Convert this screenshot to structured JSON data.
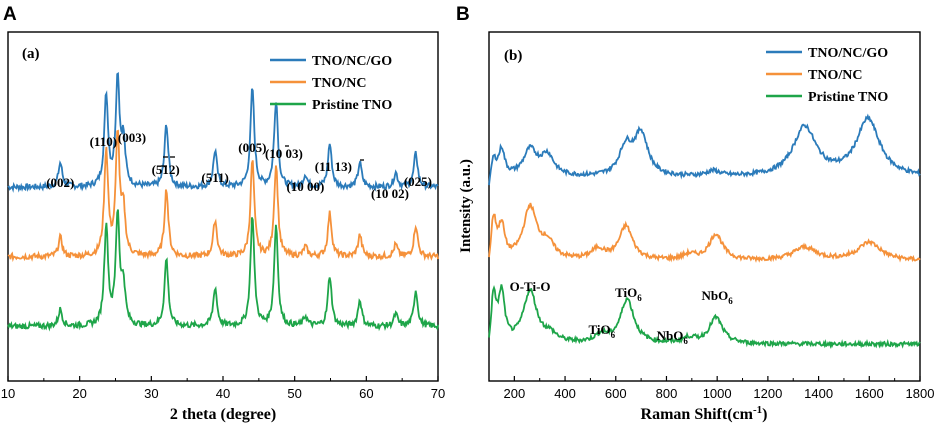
{
  "colors": {
    "blue": "#2b7bba",
    "orange": "#f5913a",
    "green": "#1ea549",
    "axis": "#000000"
  },
  "chart_data": [
    {
      "panel_letter": "A",
      "panel_label": "(a)",
      "type": "line",
      "title": "",
      "xlabel": "2 theta (degree)",
      "ylabel": "",
      "xlim": [
        10,
        70
      ],
      "xticks": [
        "10",
        "20",
        "30",
        "40",
        "50",
        "60",
        "70"
      ],
      "legend_position": "top-right",
      "series": [
        {
          "name": "TNO/NC/GO",
          "color_key": "blue",
          "baseline": 0.72,
          "peaks": [
            [
              17.3,
              0.1
            ],
            [
              23.7,
              0.38
            ],
            [
              25.3,
              0.45
            ],
            [
              26.1,
              0.18
            ],
            [
              32.1,
              0.26
            ],
            [
              38.9,
              0.15
            ],
            [
              44.1,
              0.41
            ],
            [
              47.4,
              0.36
            ],
            [
              51.5,
              0.05
            ],
            [
              54.9,
              0.18
            ],
            [
              59.1,
              0.1
            ],
            [
              64.1,
              0.06
            ],
            [
              66.9,
              0.14
            ]
          ]
        },
        {
          "name": "TNO/NC",
          "color_key": "orange",
          "baseline": 0.43,
          "peaks": [
            [
              17.3,
              0.08
            ],
            [
              23.7,
              0.44
            ],
            [
              25.3,
              0.5
            ],
            [
              26.1,
              0.18
            ],
            [
              32.1,
              0.28
            ],
            [
              38.9,
              0.15
            ],
            [
              44.1,
              0.4
            ],
            [
              47.4,
              0.38
            ],
            [
              51.5,
              0.04
            ],
            [
              54.9,
              0.18
            ],
            [
              59.1,
              0.09
            ],
            [
              64.1,
              0.05
            ],
            [
              66.9,
              0.13
            ]
          ]
        },
        {
          "name": "Pristine TNO",
          "color_key": "green",
          "baseline": 0.14,
          "peaks": [
            [
              17.3,
              0.07
            ],
            [
              23.7,
              0.42
            ],
            [
              25.3,
              0.46
            ],
            [
              26.1,
              0.16
            ],
            [
              32.1,
              0.28
            ],
            [
              38.9,
              0.16
            ],
            [
              44.1,
              0.46
            ],
            [
              47.4,
              0.42
            ],
            [
              51.5,
              0.04
            ],
            [
              54.9,
              0.21
            ],
            [
              59.1,
              0.11
            ],
            [
              64.1,
              0.05
            ],
            [
              66.9,
              0.15
            ]
          ]
        }
      ],
      "annotations": [
        {
          "text": "(002)",
          "x": 17.3
        },
        {
          "text": "(110)",
          "x": 23.3
        },
        {
          "text": "(003)",
          "x": 27.3
        },
        {
          "text": "(512)",
          "x": 32.0
        },
        {
          "text": "(511)",
          "x": 38.9
        },
        {
          "text": "(005)",
          "x": 44.1
        },
        {
          "text": "(10 03)",
          "x": 48.5
        },
        {
          "text": "(10 00)",
          "x": 51.5
        },
        {
          "text": "(11 13)",
          "x": 55.4
        },
        {
          "text": "(10 02)",
          "x": 63.3
        },
        {
          "text": "(025)",
          "x": 67.2
        }
      ]
    },
    {
      "panel_letter": "B",
      "panel_label": "(b)",
      "type": "line",
      "title": "",
      "xlabel": "Raman Shift(cm",
      "xlabel_sup": "-1",
      "xlabel_end": ")",
      "ylabel": "Intensity (a.u.)",
      "xlim": [
        100,
        1800
      ],
      "xticks": [
        "200",
        "400",
        "600",
        "800",
        "1000",
        "1200",
        "1400",
        "1600",
        "1800"
      ],
      "legend_position": "top-right",
      "series": [
        {
          "name": "TNO/NC/GO",
          "color_key": "blue",
          "baseline": 0.72,
          "peaks": [
            [
              118,
              0.06
            ],
            [
              150,
              0.1
            ],
            [
              262,
              0.1
            ],
            [
              330,
              0.08
            ],
            [
              640,
              0.11
            ],
            [
              700,
              0.16
            ],
            [
              985,
              0.02
            ],
            [
              1345,
              0.19
            ],
            [
              1595,
              0.22
            ]
          ]
        },
        {
          "name": "TNO/NC",
          "color_key": "orange",
          "baseline": 0.4,
          "peaks": [
            [
              118,
              0.15
            ],
            [
              150,
              0.12
            ],
            [
              262,
              0.2
            ],
            [
              330,
              0.06
            ],
            [
              530,
              0.04
            ],
            [
              640,
              0.13
            ],
            [
              890,
              0.02
            ],
            [
              995,
              0.1
            ],
            [
              1345,
              0.05
            ],
            [
              1600,
              0.07
            ]
          ]
        },
        {
          "name": "Pristine TNO",
          "color_key": "green",
          "baseline": 0.08,
          "peaks": [
            [
              118,
              0.17
            ],
            [
              150,
              0.18
            ],
            [
              262,
              0.2
            ],
            [
              340,
              0.03
            ],
            [
              545,
              0.03
            ],
            [
              645,
              0.17
            ],
            [
              890,
              0.02
            ],
            [
              995,
              0.1
            ]
          ]
        }
      ],
      "annotations": [
        {
          "text": "O-Ti-O",
          "x": 262,
          "sub": ""
        },
        {
          "text": "TiO",
          "x": 650,
          "sub": "6"
        },
        {
          "text": "TiO",
          "x": 545,
          "sub": "6"
        },
        {
          "text": "NbO",
          "x": 1000,
          "sub": "6"
        },
        {
          "text": "NbO",
          "x": 870,
          "sub": "6"
        }
      ]
    }
  ]
}
